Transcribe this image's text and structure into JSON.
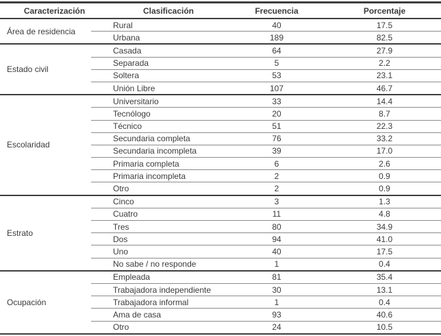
{
  "table": {
    "headers": [
      "Caracterización",
      "Clasificación",
      "Frecuencia",
      "Porcentaje"
    ],
    "groups": [
      {
        "category": "Área de residencia",
        "rows": [
          {
            "clasificacion": "Rural",
            "frecuencia": "40",
            "porcentaje": "17.5"
          },
          {
            "clasificacion": "Urbana",
            "frecuencia": "189",
            "porcentaje": "82.5"
          }
        ]
      },
      {
        "category": "Estado civil",
        "rows": [
          {
            "clasificacion": "Casada",
            "frecuencia": "64",
            "porcentaje": "27.9"
          },
          {
            "clasificacion": "Separada",
            "frecuencia": "5",
            "porcentaje": "2.2"
          },
          {
            "clasificacion": "Soltera",
            "frecuencia": "53",
            "porcentaje": "23.1"
          },
          {
            "clasificacion": "Unión Libre",
            "frecuencia": "107",
            "porcentaje": "46.7"
          }
        ]
      },
      {
        "category": "Escolaridad",
        "rows": [
          {
            "clasificacion": "Universitario",
            "frecuencia": "33",
            "porcentaje": "14.4"
          },
          {
            "clasificacion": "Tecnólogo",
            "frecuencia": "20",
            "porcentaje": "8.7"
          },
          {
            "clasificacion": "Técnico",
            "frecuencia": "51",
            "porcentaje": "22.3"
          },
          {
            "clasificacion": "Secundaria completa",
            "frecuencia": "76",
            "porcentaje": "33.2"
          },
          {
            "clasificacion": "Secundaria incompleta",
            "frecuencia": "39",
            "porcentaje": "17.0"
          },
          {
            "clasificacion": "Primaria completa",
            "frecuencia": "6",
            "porcentaje": "2.6"
          },
          {
            "clasificacion": "Primaria incompleta",
            "frecuencia": "2",
            "porcentaje": "0.9"
          },
          {
            "clasificacion": "Otro",
            "frecuencia": "2",
            "porcentaje": "0.9"
          }
        ]
      },
      {
        "category": "Estrato",
        "rows": [
          {
            "clasificacion": "Cinco",
            "frecuencia": "3",
            "porcentaje": "1.3"
          },
          {
            "clasificacion": "Cuatro",
            "frecuencia": "11",
            "porcentaje": "4.8"
          },
          {
            "clasificacion": "Tres",
            "frecuencia": "80",
            "porcentaje": "34.9"
          },
          {
            "clasificacion": "Dos",
            "frecuencia": "94",
            "porcentaje": "41.0"
          },
          {
            "clasificacion": "Uno",
            "frecuencia": "40",
            "porcentaje": "17.5"
          },
          {
            "clasificacion": "No sabe / no responde",
            "frecuencia": "1",
            "porcentaje": "0.4"
          }
        ]
      },
      {
        "category": "Ocupación",
        "rows": [
          {
            "clasificacion": "Empleada",
            "frecuencia": "81",
            "porcentaje": "35.4"
          },
          {
            "clasificacion": "Trabajadora independiente",
            "frecuencia": "30",
            "porcentaje": "13.1"
          },
          {
            "clasificacion": "Trabajadora informal",
            "frecuencia": "1",
            "porcentaje": "0.4"
          },
          {
            "clasificacion": "Ama de casa",
            "frecuencia": "93",
            "porcentaje": "40.6"
          },
          {
            "clasificacion": "Otro",
            "frecuencia": "24",
            "porcentaje": "10.5"
          }
        ]
      }
    ],
    "colors": {
      "line_dark": "#3e3e3e",
      "line_light": "#8c8c8c",
      "text": "#3b3b3b",
      "background": "#ffffff"
    }
  }
}
